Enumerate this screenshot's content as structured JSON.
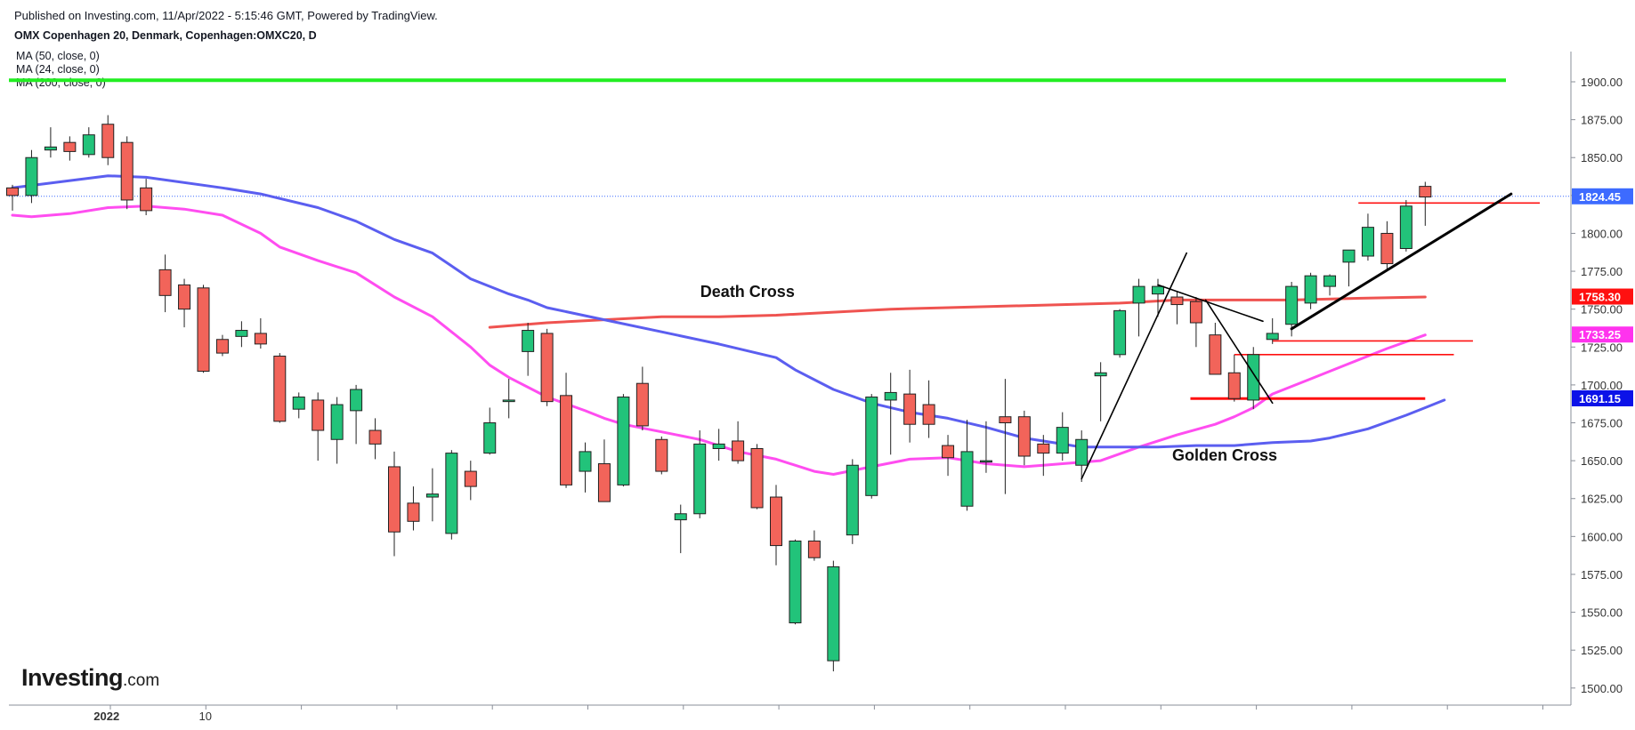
{
  "header": {
    "published": "Published on Investing.com, 11/Apr/2022 - 5:15:46 GMT, Powered by TradingView.",
    "instrument": "OMX Copenhagen 20, Denmark, Copenhagen:OMXC20, D"
  },
  "legend": [
    {
      "label": "MA (50, close, 0)"
    },
    {
      "label": "MA (24, close, 0)"
    },
    {
      "label": "MA (200, close, 0)"
    }
  ],
  "logo": {
    "brand": "Investing",
    "suffix": ".com"
  },
  "colors": {
    "up": "#22c37a",
    "down": "#f2645a",
    "ma50": "#5b5ef0",
    "ma24": "#ff4df0",
    "ma200": "#ef5350",
    "resistance": "#22ee22",
    "last_price_line": "#3d6bff"
  },
  "chart_data": {
    "type": "candlestick",
    "yaxis": {
      "ticks": [
        "1900.00",
        "1875.00",
        "1850.00",
        "1825.00",
        "1800.00",
        "1775.00",
        "1750.00",
        "1725.00",
        "1700.00",
        "1675.00",
        "1650.00",
        "1625.00",
        "1600.00",
        "1575.00",
        "1550.00",
        "1525.00",
        "1500.00"
      ],
      "ylim": [
        1486,
        1908
      ]
    },
    "xaxis": {
      "labels": [
        {
          "text": "2022",
          "index": 5
        },
        {
          "text": "10",
          "index": 10
        }
      ]
    },
    "price_labels": [
      {
        "text": "1824.45",
        "value": 1824.45,
        "color": "#3d6bff"
      },
      {
        "text": "1758.30",
        "value": 1758.3,
        "color": "#ff1010"
      },
      {
        "text": "1733.25",
        "value": 1733.25,
        "color": "#ff33ee"
      },
      {
        "text": "1691.15",
        "value": 1691.15,
        "color": "#0c12e8"
      }
    ],
    "candles": [
      [
        1830,
        1832,
        1815,
        1825
      ],
      [
        1825,
        1855,
        1820,
        1850
      ],
      [
        1855,
        1870,
        1850,
        1857
      ],
      [
        1860,
        1864,
        1848,
        1854
      ],
      [
        1852,
        1870,
        1850,
        1865
      ],
      [
        1872,
        1878,
        1845,
        1850
      ],
      [
        1860,
        1864,
        1816,
        1822
      ],
      [
        1830,
        1836,
        1812,
        1815
      ],
      [
        1776,
        1786,
        1748,
        1759
      ],
      [
        1766,
        1770,
        1738,
        1750
      ],
      [
        1764,
        1766,
        1708,
        1709
      ],
      [
        1730,
        1733,
        1719,
        1721
      ],
      [
        1732,
        1742,
        1725,
        1736
      ],
      [
        1734,
        1744,
        1724,
        1727
      ],
      [
        1719,
        1721,
        1675,
        1676
      ],
      [
        1684,
        1695,
        1678,
        1692
      ],
      [
        1690,
        1695,
        1650,
        1670
      ],
      [
        1664,
        1692,
        1648,
        1687
      ],
      [
        1683,
        1700,
        1661,
        1697
      ],
      [
        1670,
        1678,
        1651,
        1661
      ],
      [
        1646,
        1656,
        1587,
        1603
      ],
      [
        1622,
        1633,
        1604,
        1610
      ],
      [
        1626,
        1645,
        1610,
        1628
      ],
      [
        1602,
        1657,
        1598,
        1655
      ],
      [
        1643,
        1650,
        1624,
        1633
      ],
      [
        1655,
        1685,
        1654,
        1675
      ],
      [
        1689,
        1704,
        1678,
        1690
      ],
      [
        1722,
        1741,
        1706,
        1736
      ],
      [
        1734,
        1737,
        1686,
        1689
      ],
      [
        1693,
        1708,
        1632,
        1634
      ],
      [
        1643,
        1662,
        1629,
        1656
      ],
      [
        1648,
        1664,
        1623,
        1623
      ],
      [
        1634,
        1694,
        1633,
        1692
      ],
      [
        1701,
        1712,
        1670,
        1673
      ],
      [
        1664,
        1666,
        1641,
        1643
      ],
      [
        1611,
        1621,
        1589,
        1615
      ],
      [
        1615,
        1670,
        1612,
        1661
      ],
      [
        1658,
        1671,
        1650,
        1661
      ],
      [
        1663,
        1676,
        1648,
        1650
      ],
      [
        1658,
        1661,
        1618,
        1619
      ],
      [
        1626,
        1634,
        1581,
        1594
      ],
      [
        1543,
        1598,
        1542,
        1597
      ],
      [
        1597,
        1604,
        1584,
        1586
      ],
      [
        1518,
        1584,
        1511,
        1580
      ],
      [
        1601,
        1651,
        1595,
        1647
      ],
      [
        1627,
        1694,
        1625,
        1692
      ],
      [
        1690,
        1708,
        1654,
        1695
      ],
      [
        1694,
        1710,
        1662,
        1674
      ],
      [
        1687,
        1703,
        1665,
        1674
      ],
      [
        1660,
        1667,
        1640,
        1652
      ],
      [
        1620,
        1677,
        1617,
        1656
      ],
      [
        1650,
        1676,
        1642,
        1650
      ],
      [
        1679,
        1704,
        1628,
        1675
      ],
      [
        1679,
        1683,
        1647,
        1653
      ],
      [
        1661,
        1667,
        1640,
        1655
      ],
      [
        1655,
        1682,
        1650,
        1672
      ],
      [
        1647,
        1670,
        1636,
        1664
      ],
      [
        1706,
        1715,
        1676,
        1708
      ],
      [
        1720,
        1750,
        1718,
        1749
      ],
      [
        1754,
        1770,
        1732,
        1765
      ],
      [
        1760,
        1770,
        1745,
        1765
      ],
      [
        1758,
        1762,
        1740,
        1753
      ],
      [
        1755,
        1758,
        1725,
        1741
      ],
      [
        1733,
        1741,
        1707,
        1707
      ],
      [
        1708,
        1720,
        1689,
        1691
      ],
      [
        1690,
        1725,
        1684,
        1720
      ],
      [
        1730,
        1744,
        1727,
        1734
      ],
      [
        1740,
        1768,
        1732,
        1765
      ],
      [
        1754,
        1774,
        1750,
        1772
      ],
      [
        1765,
        1773,
        1759,
        1772
      ],
      [
        1781,
        1788,
        1765,
        1789
      ],
      [
        1785,
        1813,
        1782,
        1804
      ],
      [
        1800,
        1808,
        1775,
        1780
      ],
      [
        1790,
        1822,
        1788,
        1818
      ],
      [
        1831,
        1834,
        1805,
        1824
      ]
    ],
    "ma50": [
      [
        0,
        1830
      ],
      [
        5,
        1838
      ],
      [
        7,
        1837
      ],
      [
        11,
        1830
      ],
      [
        13,
        1826
      ],
      [
        16,
        1817
      ],
      [
        18,
        1808
      ],
      [
        20,
        1796
      ],
      [
        22,
        1787
      ],
      [
        24,
        1770
      ],
      [
        26,
        1760
      ],
      [
        27,
        1756
      ],
      [
        28,
        1751
      ],
      [
        31,
        1743
      ],
      [
        34,
        1735
      ],
      [
        37,
        1727
      ],
      [
        40,
        1718
      ],
      [
        41,
        1710
      ],
      [
        43,
        1697
      ],
      [
        45,
        1688
      ],
      [
        47,
        1682
      ],
      [
        49,
        1678
      ],
      [
        51,
        1672
      ],
      [
        53,
        1665
      ],
      [
        55,
        1661
      ],
      [
        56,
        1659
      ],
      [
        58,
        1659
      ],
      [
        60,
        1659
      ],
      [
        62,
        1660
      ],
      [
        64,
        1660
      ],
      [
        66,
        1662
      ],
      [
        68,
        1663
      ],
      [
        69,
        1665
      ],
      [
        71,
        1671
      ],
      [
        73,
        1680
      ],
      [
        74,
        1685
      ],
      [
        75,
        1690
      ]
    ],
    "ma24": [
      [
        0,
        1812
      ],
      [
        1,
        1811
      ],
      [
        3,
        1813
      ],
      [
        5,
        1817
      ],
      [
        7,
        1818
      ],
      [
        9,
        1816
      ],
      [
        11,
        1812
      ],
      [
        13,
        1800
      ],
      [
        14,
        1791
      ],
      [
        16,
        1782
      ],
      [
        18,
        1774
      ],
      [
        20,
        1758
      ],
      [
        22,
        1745
      ],
      [
        24,
        1725
      ],
      [
        25,
        1713
      ],
      [
        26,
        1705
      ],
      [
        28,
        1692
      ],
      [
        30,
        1683
      ],
      [
        31,
        1678
      ],
      [
        32,
        1674
      ],
      [
        34,
        1669
      ],
      [
        36,
        1664
      ],
      [
        38,
        1656
      ],
      [
        40,
        1651
      ],
      [
        42,
        1643
      ],
      [
        43,
        1641
      ],
      [
        45,
        1646
      ],
      [
        47,
        1651
      ],
      [
        49,
        1652
      ],
      [
        51,
        1648
      ],
      [
        53,
        1646
      ],
      [
        54,
        1647
      ],
      [
        55,
        1648
      ],
      [
        57,
        1650
      ],
      [
        59,
        1659
      ],
      [
        61,
        1667
      ],
      [
        63,
        1674
      ],
      [
        64,
        1679
      ],
      [
        65,
        1685
      ],
      [
        66,
        1694
      ],
      [
        68,
        1704
      ],
      [
        70,
        1714
      ],
      [
        72,
        1724
      ],
      [
        74,
        1733
      ]
    ],
    "ma200": [
      [
        25,
        1738
      ],
      [
        28,
        1741
      ],
      [
        31,
        1743
      ],
      [
        34,
        1745
      ],
      [
        37,
        1745
      ],
      [
        40,
        1746
      ],
      [
        43,
        1748
      ],
      [
        46,
        1750
      ],
      [
        49,
        1751
      ],
      [
        52,
        1752
      ],
      [
        55,
        1753
      ],
      [
        58,
        1754
      ],
      [
        61,
        1756
      ],
      [
        64,
        1756
      ],
      [
        67,
        1756
      ],
      [
        70,
        1757
      ],
      [
        74,
        1758
      ]
    ],
    "resistance": 1901,
    "last_price": 1824.45,
    "annotations": [
      {
        "text": "Death Cross",
        "x": 38.5,
        "y": 1758
      },
      {
        "text": "Golden Cross",
        "x": 63.5,
        "y": 1650
      }
    ],
    "red_lines": [
      {
        "from": 70.5,
        "to": 80,
        "y": 1820
      },
      {
        "from": 66,
        "to": 76.5,
        "y": 1729
      },
      {
        "from": 64,
        "to": 75.5,
        "y": 1720
      },
      {
        "from": 61.7,
        "to": 74,
        "y": 1691
      }
    ],
    "trend_lines": [
      {
        "p1": [
          56,
          1638
        ],
        "p2": [
          61.5,
          1787
        ],
        "w": 1.6
      },
      {
        "p1": [
          60,
          1766
        ],
        "p2": [
          65.5,
          1742
        ],
        "w": 1.6
      },
      {
        "p1": [
          62.5,
          1756
        ],
        "p2": [
          66,
          1688
        ],
        "w": 1.6
      },
      {
        "p1": [
          67,
          1737
        ],
        "p2": [
          78.5,
          1826
        ],
        "w": 3
      }
    ]
  }
}
